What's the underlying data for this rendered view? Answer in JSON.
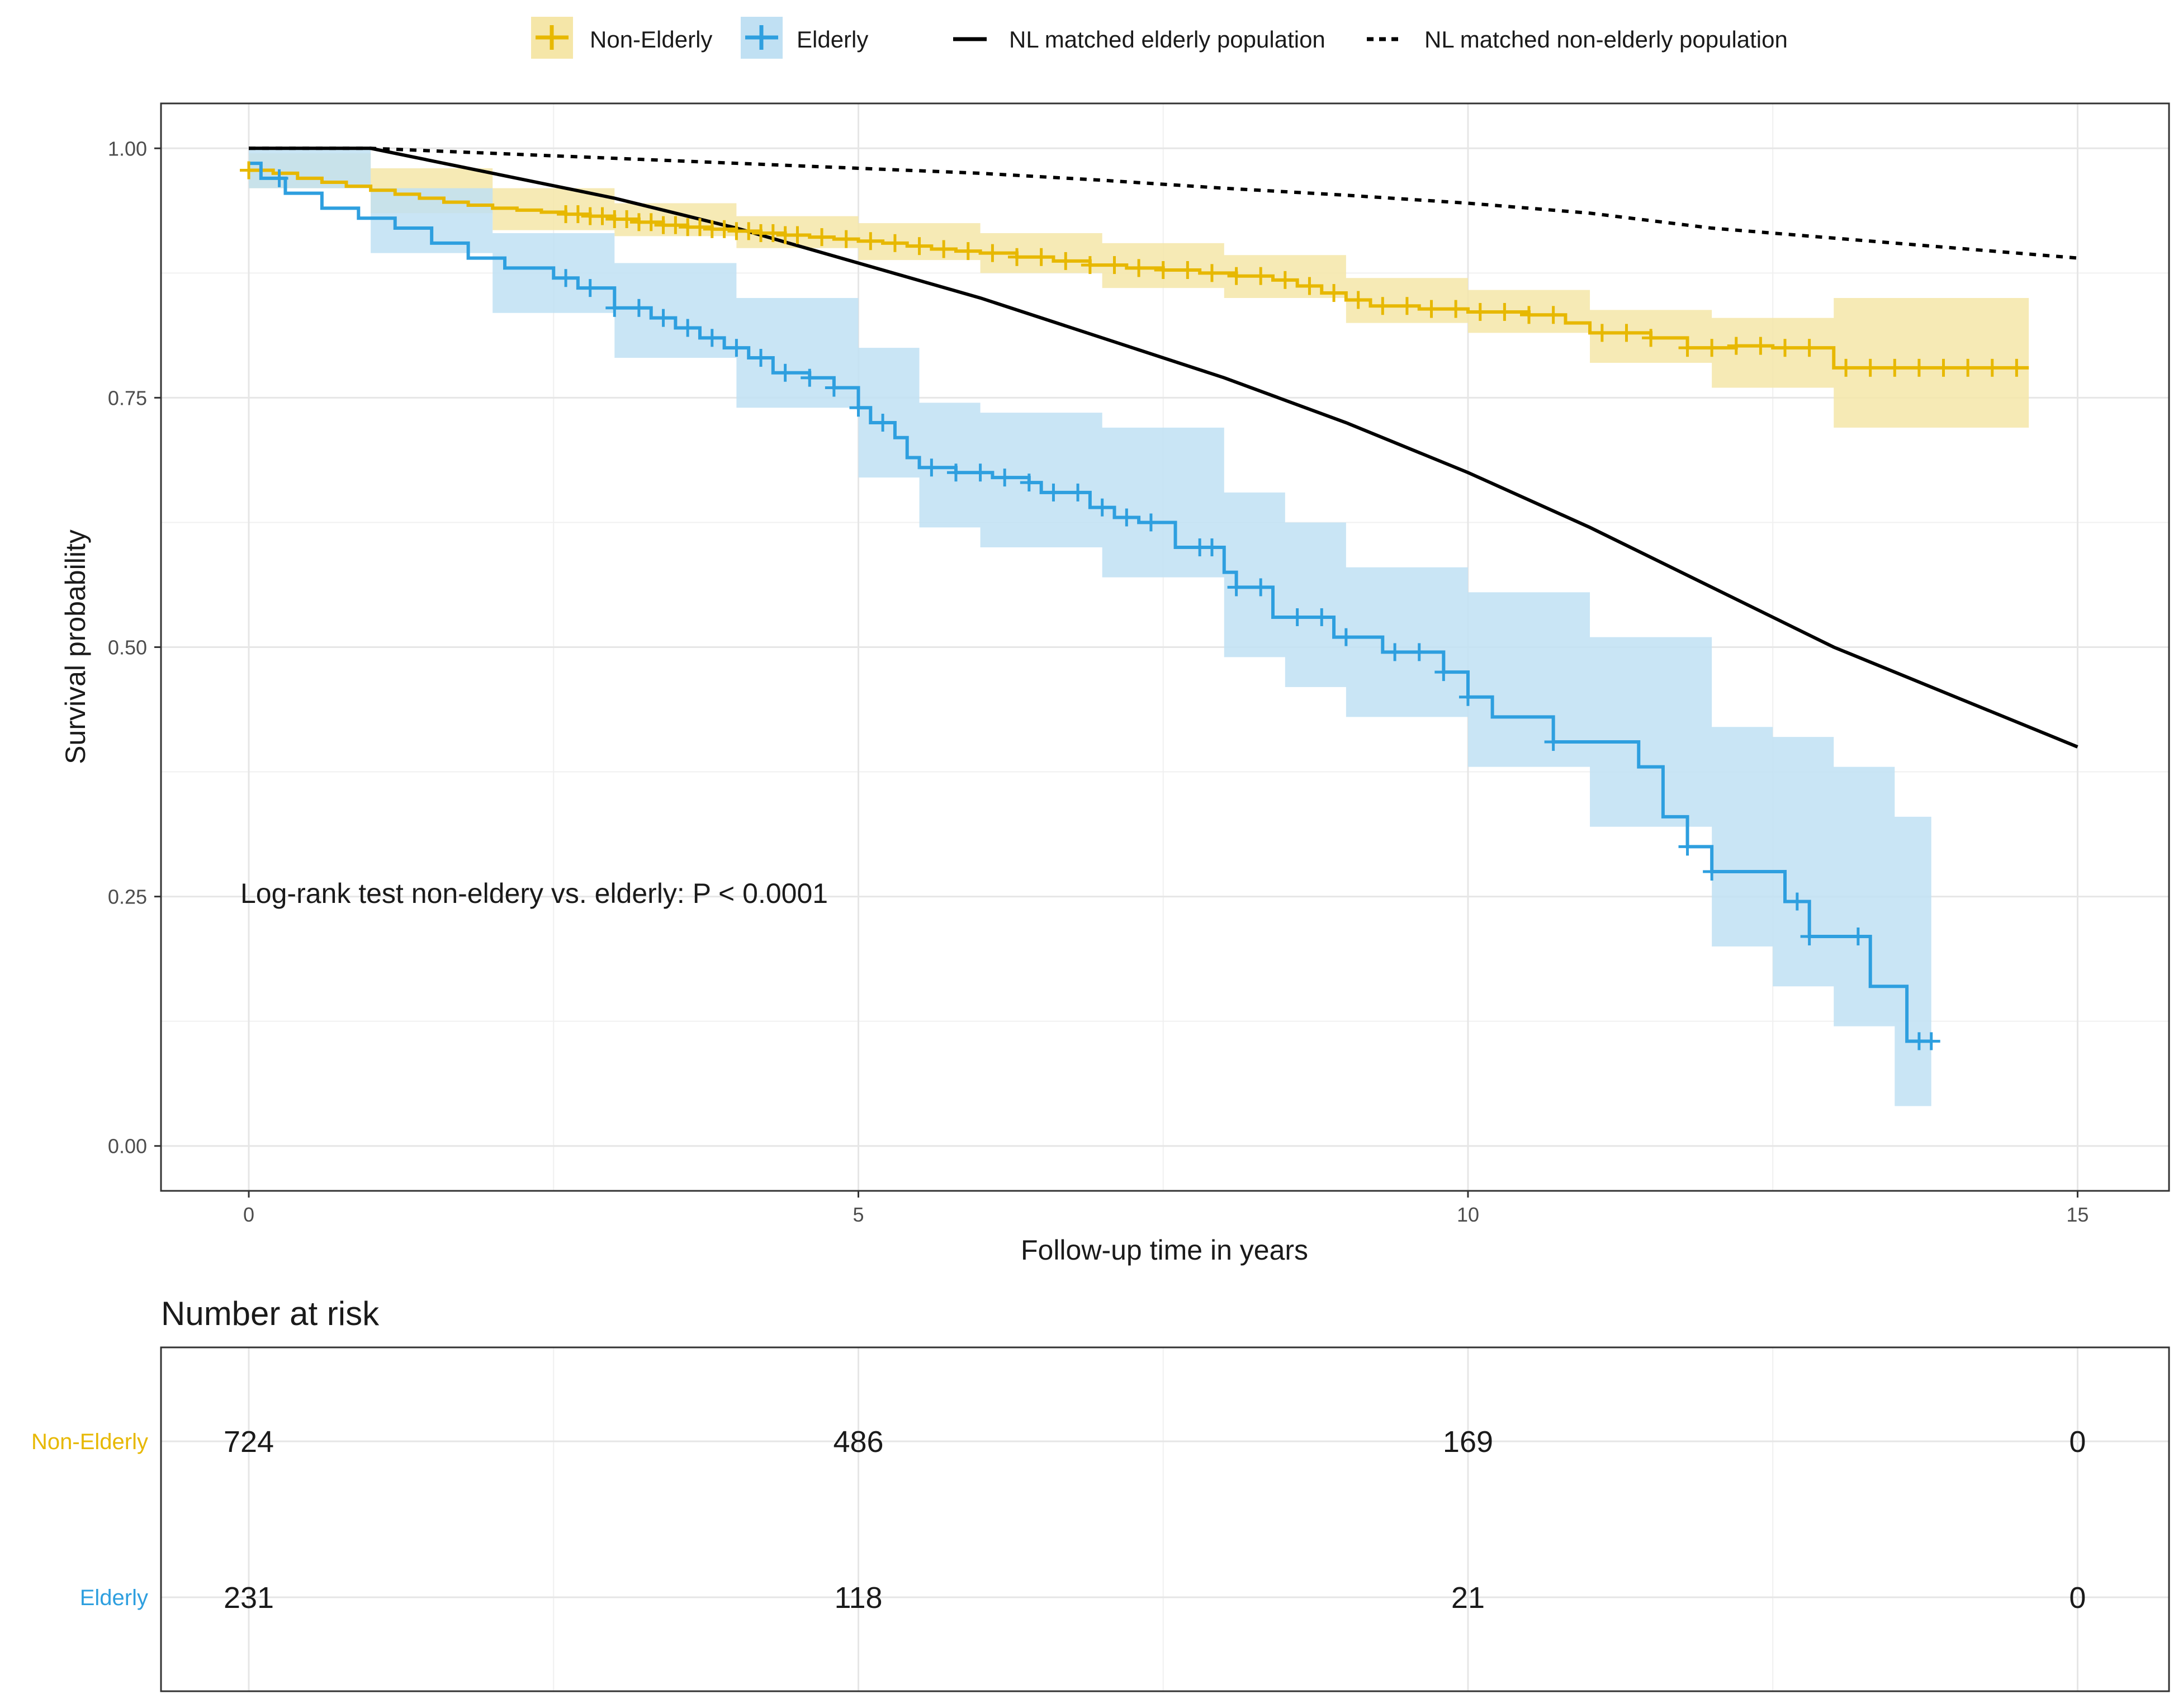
{
  "chart_data": {
    "type": "line",
    "subtype": "kaplan-meier survival curve",
    "xlabel": "Follow-up time in years",
    "ylabel": "Survival probability",
    "xlim": [
      -0.72,
      15.75
    ],
    "ylim": [
      -0.045,
      1.045
    ],
    "x_ticks": [
      0,
      5,
      10,
      15
    ],
    "x_tick_labels": [
      "0",
      "5",
      "10",
      "15"
    ],
    "y_ticks": [
      0,
      0.25,
      0.5,
      0.75,
      1
    ],
    "y_tick_labels": [
      "0.00",
      "0.25",
      "0.50",
      "0.75",
      "1.00"
    ],
    "grid": true,
    "legend_position": "top",
    "annotation": "Log-rank test non-eldery vs. elderly:  P < 0.0001",
    "colors": {
      "non_elderly": "#E7B800",
      "elderly": "#2E9FDF",
      "non_elderly_band": "#F5E6A8",
      "elderly_band": "#C0E0F3",
      "reference": "#000000"
    },
    "series": [
      {
        "name": "Non-Elderly",
        "kind": "km",
        "color": "#E7B800",
        "steps": [
          [
            0,
            0.978
          ],
          [
            0.2,
            0.975
          ],
          [
            0.4,
            0.97
          ],
          [
            0.6,
            0.966
          ],
          [
            0.8,
            0.962
          ],
          [
            1.0,
            0.958
          ],
          [
            1.2,
            0.954
          ],
          [
            1.4,
            0.95
          ],
          [
            1.6,
            0.946
          ],
          [
            1.8,
            0.943
          ],
          [
            2.0,
            0.94
          ],
          [
            2.2,
            0.938
          ],
          [
            2.4,
            0.936
          ],
          [
            2.6,
            0.934
          ],
          [
            2.8,
            0.932
          ],
          [
            3.0,
            0.929
          ],
          [
            3.2,
            0.926
          ],
          [
            3.4,
            0.923
          ],
          [
            3.6,
            0.921
          ],
          [
            3.8,
            0.919
          ],
          [
            4.0,
            0.917
          ],
          [
            4.2,
            0.915
          ],
          [
            4.4,
            0.913
          ],
          [
            4.6,
            0.911
          ],
          [
            4.8,
            0.909
          ],
          [
            5.0,
            0.907
          ],
          [
            5.2,
            0.905
          ],
          [
            5.4,
            0.902
          ],
          [
            5.6,
            0.899
          ],
          [
            5.8,
            0.897
          ],
          [
            6.0,
            0.895
          ],
          [
            6.3,
            0.891
          ],
          [
            6.6,
            0.887
          ],
          [
            6.9,
            0.883
          ],
          [
            7.2,
            0.88
          ],
          [
            7.5,
            0.878
          ],
          [
            7.8,
            0.875
          ],
          [
            8.1,
            0.872
          ],
          [
            8.4,
            0.868
          ],
          [
            8.6,
            0.862
          ],
          [
            8.8,
            0.855
          ],
          [
            9.0,
            0.848
          ],
          [
            9.2,
            0.842
          ],
          [
            9.6,
            0.839
          ],
          [
            10.0,
            0.836
          ],
          [
            10.5,
            0.833
          ],
          [
            10.8,
            0.825
          ],
          [
            11.0,
            0.815
          ],
          [
            11.5,
            0.81
          ],
          [
            11.8,
            0.8
          ],
          [
            12.2,
            0.802
          ],
          [
            12.5,
            0.8
          ],
          [
            13.0,
            0.78
          ],
          [
            14.6,
            0.78
          ]
        ],
        "band_upper": [
          [
            0,
            0.995
          ],
          [
            1,
            0.98
          ],
          [
            2,
            0.96
          ],
          [
            3,
            0.945
          ],
          [
            4,
            0.932
          ],
          [
            5,
            0.925
          ],
          [
            6,
            0.915
          ],
          [
            7,
            0.905
          ],
          [
            8,
            0.893
          ],
          [
            9,
            0.87
          ],
          [
            10,
            0.858
          ],
          [
            11,
            0.838
          ],
          [
            12,
            0.83
          ],
          [
            13,
            0.85
          ],
          [
            14.6,
            0.85
          ]
        ],
        "band_lower": [
          [
            0,
            0.96
          ],
          [
            1,
            0.935
          ],
          [
            2,
            0.918
          ],
          [
            3,
            0.912
          ],
          [
            4,
            0.9
          ],
          [
            5,
            0.888
          ],
          [
            6,
            0.875
          ],
          [
            7,
            0.86
          ],
          [
            8,
            0.85
          ],
          [
            9,
            0.825
          ],
          [
            10,
            0.815
          ],
          [
            11,
            0.785
          ],
          [
            12,
            0.76
          ],
          [
            13,
            0.72
          ],
          [
            14.6,
            0.72
          ]
        ],
        "censor_x": [
          0,
          2.6,
          2.7,
          2.8,
          2.9,
          3.0,
          3.1,
          3.2,
          3.3,
          3.4,
          3.5,
          3.6,
          3.7,
          3.8,
          3.9,
          4.0,
          4.1,
          4.2,
          4.3,
          4.4,
          4.5,
          4.7,
          4.9,
          5.1,
          5.3,
          5.5,
          5.7,
          5.9,
          6.1,
          6.3,
          6.5,
          6.7,
          6.9,
          7.1,
          7.3,
          7.5,
          7.7,
          7.9,
          8.1,
          8.3,
          8.5,
          8.7,
          8.9,
          9.1,
          9.3,
          9.5,
          9.7,
          9.9,
          10.1,
          10.3,
          10.5,
          10.7,
          11.1,
          11.3,
          11.5,
          11.8,
          12.0,
          12.2,
          12.4,
          12.6,
          12.8,
          13.1,
          13.3,
          13.5,
          13.7,
          13.9,
          14.1,
          14.3,
          14.5
        ]
      },
      {
        "name": "Elderly",
        "kind": "km",
        "color": "#2E9FDF",
        "steps": [
          [
            0,
            0.985
          ],
          [
            0.1,
            0.97
          ],
          [
            0.3,
            0.955
          ],
          [
            0.6,
            0.94
          ],
          [
            0.9,
            0.93
          ],
          [
            1.2,
            0.92
          ],
          [
            1.5,
            0.905
          ],
          [
            1.8,
            0.89
          ],
          [
            2.1,
            0.88
          ],
          [
            2.5,
            0.87
          ],
          [
            2.7,
            0.86
          ],
          [
            3.0,
            0.84
          ],
          [
            3.3,
            0.83
          ],
          [
            3.5,
            0.82
          ],
          [
            3.7,
            0.81
          ],
          [
            3.9,
            0.8
          ],
          [
            4.1,
            0.79
          ],
          [
            4.3,
            0.775
          ],
          [
            4.6,
            0.77
          ],
          [
            4.8,
            0.76
          ],
          [
            5.0,
            0.74
          ],
          [
            5.1,
            0.725
          ],
          [
            5.3,
            0.71
          ],
          [
            5.4,
            0.69
          ],
          [
            5.5,
            0.68
          ],
          [
            5.8,
            0.675
          ],
          [
            6.1,
            0.67
          ],
          [
            6.4,
            0.665
          ],
          [
            6.5,
            0.655
          ],
          [
            6.9,
            0.64
          ],
          [
            7.1,
            0.63
          ],
          [
            7.3,
            0.625
          ],
          [
            7.6,
            0.6
          ],
          [
            8.0,
            0.575
          ],
          [
            8.1,
            0.56
          ],
          [
            8.4,
            0.53
          ],
          [
            8.9,
            0.51
          ],
          [
            9.3,
            0.495
          ],
          [
            9.8,
            0.475
          ],
          [
            10.0,
            0.45
          ],
          [
            10.2,
            0.43
          ],
          [
            10.7,
            0.405
          ],
          [
            11.4,
            0.38
          ],
          [
            11.6,
            0.33
          ],
          [
            11.8,
            0.3
          ],
          [
            12.0,
            0.275
          ],
          [
            12.6,
            0.245
          ],
          [
            12.8,
            0.21
          ],
          [
            13.3,
            0.16
          ],
          [
            13.6,
            0.105
          ],
          [
            13.8,
            0.105
          ]
        ],
        "band_upper": [
          [
            0,
            1.0
          ],
          [
            1,
            0.96
          ],
          [
            2,
            0.915
          ],
          [
            3,
            0.885
          ],
          [
            4,
            0.85
          ],
          [
            5,
            0.8
          ],
          [
            5.5,
            0.745
          ],
          [
            6,
            0.735
          ],
          [
            7,
            0.72
          ],
          [
            8,
            0.655
          ],
          [
            8.5,
            0.625
          ],
          [
            9,
            0.58
          ],
          [
            10,
            0.555
          ],
          [
            11,
            0.51
          ],
          [
            12,
            0.42
          ],
          [
            12.5,
            0.41
          ],
          [
            13,
            0.38
          ],
          [
            13.5,
            0.33
          ],
          [
            13.8,
            0.33
          ]
        ],
        "band_lower": [
          [
            0,
            0.96
          ],
          [
            1,
            0.895
          ],
          [
            2,
            0.835
          ],
          [
            3,
            0.79
          ],
          [
            4,
            0.74
          ],
          [
            5,
            0.67
          ],
          [
            5.5,
            0.62
          ],
          [
            6,
            0.6
          ],
          [
            7,
            0.57
          ],
          [
            8,
            0.49
          ],
          [
            8.5,
            0.46
          ],
          [
            9,
            0.43
          ],
          [
            10,
            0.38
          ],
          [
            11,
            0.32
          ],
          [
            12,
            0.2
          ],
          [
            12.5,
            0.16
          ],
          [
            13,
            0.12
          ],
          [
            13.5,
            0.04
          ],
          [
            13.8,
            0.04
          ]
        ],
        "censor_x": [
          0.25,
          2.6,
          2.8,
          3.0,
          3.2,
          3.4,
          3.6,
          3.8,
          4.0,
          4.2,
          4.4,
          4.6,
          4.8,
          5.0,
          5.2,
          5.6,
          5.8,
          6.0,
          6.2,
          6.4,
          6.6,
          6.8,
          7.0,
          7.2,
          7.4,
          7.8,
          7.9,
          8.1,
          8.3,
          8.6,
          8.8,
          9.0,
          9.4,
          9.6,
          9.8,
          10.0,
          10.7,
          11.8,
          12.0,
          12.7,
          12.8,
          13.2,
          13.7,
          13.8
        ]
      },
      {
        "name": "NL matched elderly population",
        "kind": "reference",
        "style": "solid",
        "color": "#000000",
        "points": [
          [
            0,
            1.0
          ],
          [
            1,
            1.0
          ],
          [
            2,
            0.975
          ],
          [
            3,
            0.95
          ],
          [
            4,
            0.92
          ],
          [
            5,
            0.885
          ],
          [
            6,
            0.85
          ],
          [
            7,
            0.81
          ],
          [
            8,
            0.77
          ],
          [
            9,
            0.725
          ],
          [
            10,
            0.675
          ],
          [
            11,
            0.62
          ],
          [
            12,
            0.56
          ],
          [
            13,
            0.5
          ],
          [
            14,
            0.45
          ],
          [
            15,
            0.4
          ]
        ]
      },
      {
        "name": "NL matched non-elderly population",
        "kind": "reference",
        "style": "dotted",
        "color": "#000000",
        "points": [
          [
            0,
            1.0
          ],
          [
            1,
            1.0
          ],
          [
            2,
            0.995
          ],
          [
            3,
            0.99
          ],
          [
            4,
            0.985
          ],
          [
            5,
            0.98
          ],
          [
            6,
            0.975
          ],
          [
            7,
            0.968
          ],
          [
            8,
            0.96
          ],
          [
            9,
            0.953
          ],
          [
            10,
            0.945
          ],
          [
            11,
            0.935
          ],
          [
            12,
            0.92
          ],
          [
            13,
            0.91
          ],
          [
            14,
            0.9
          ],
          [
            15,
            0.89
          ]
        ]
      }
    ],
    "risk_table": {
      "title": "Number at risk",
      "times": [
        0,
        5,
        10,
        15
      ],
      "rows": [
        {
          "name": "Non-Elderly",
          "color": "#E7B800",
          "values": [
            "724",
            "486",
            "169",
            "0"
          ]
        },
        {
          "name": "Elderly",
          "color": "#2E9FDF",
          "values": [
            "231",
            "118",
            "21",
            "0"
          ]
        }
      ]
    }
  }
}
